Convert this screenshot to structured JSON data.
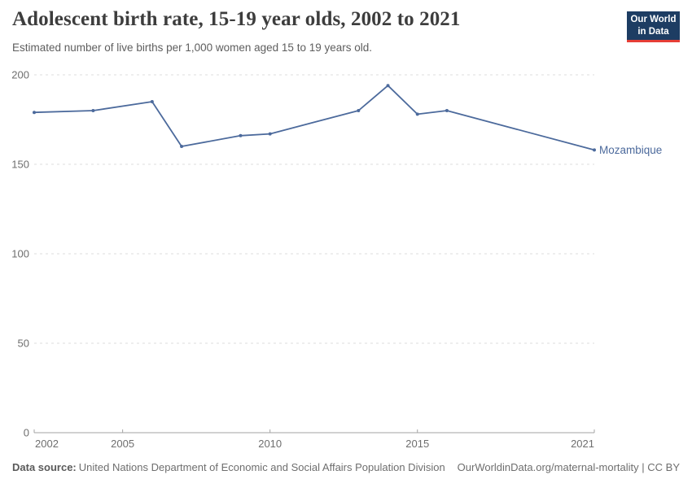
{
  "header": {
    "title": "Adolescent birth rate, 15-19 year olds, 2002 to 2021",
    "subtitle": "Estimated number of live births per 1,000 women aged 15 to 19 years old."
  },
  "logo": {
    "line1": "Our World",
    "line2": "in Data",
    "bg_color": "#1d3d63",
    "bar_color": "#e63e36"
  },
  "chart_data": {
    "type": "line",
    "title": "Adolescent birth rate, 15-19 year olds, 2002 to 2021",
    "subtitle": "Estimated number of live births per 1,000 women aged 15 to 19 years old.",
    "entity_label": "Mozambique",
    "series": [
      {
        "name": "Mozambique",
        "color": "#4C6A9C",
        "x": [
          2002,
          2004,
          2006,
          2007,
          2009,
          2010,
          2013,
          2014,
          2015,
          2016,
          2021
        ],
        "values": [
          179,
          180,
          185,
          160,
          166,
          167,
          180,
          194,
          178,
          180,
          158
        ]
      }
    ],
    "xlim": [
      2002,
      2021
    ],
    "ylim": [
      0,
      200
    ],
    "yticks": [
      0,
      50,
      100,
      150,
      200
    ],
    "xticks": [
      2002,
      2005,
      2010,
      2015,
      2021
    ],
    "grid": "horizontal-dashed",
    "legend_position": "end-of-line-label",
    "grid_color": "#dcdcdc",
    "axis_color": "#a3a3a3",
    "tick_label_color": "#6e6e6e"
  },
  "footer": {
    "source_label": "Data source:",
    "source_text": "United Nations Department of Economic and Social Affairs Population Division",
    "right_text": "OurWorldinData.org/maternal-mortality | CC BY"
  }
}
